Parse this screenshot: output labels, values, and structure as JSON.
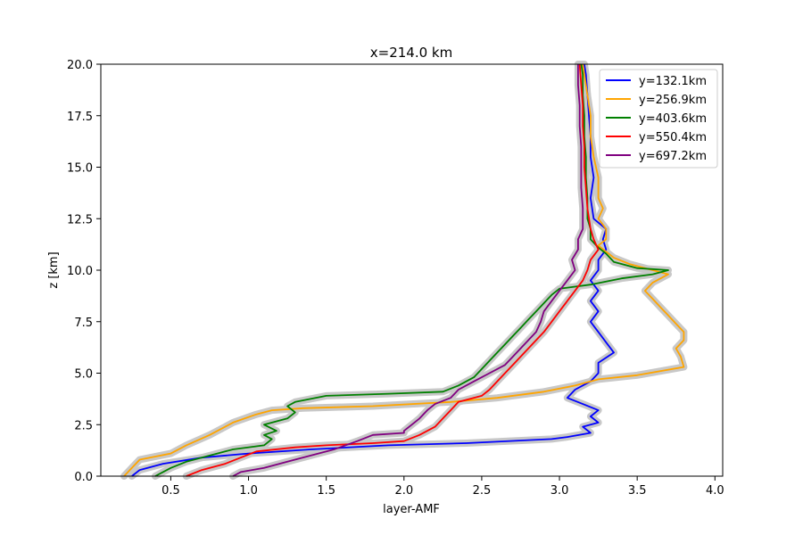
{
  "chart_data": {
    "type": "line",
    "title": "x=214.0 km",
    "xlabel": "layer-AMF",
    "ylabel": "z [km]",
    "xlim": [
      0.05,
      4.05
    ],
    "ylim": [
      0,
      20
    ],
    "xticks": [
      "0.5",
      "1.0",
      "1.5",
      "2.0",
      "2.5",
      "3.0",
      "3.5",
      "4.0"
    ],
    "yticks": [
      "0.0",
      "2.5",
      "5.0",
      "7.5",
      "10.0",
      "12.5",
      "15.0",
      "17.5",
      "20.0"
    ],
    "grid": false,
    "legend_position": "top-right",
    "band_color": "#c8c8c8",
    "series": [
      {
        "name": "y=132.1km",
        "color": "#0000ff",
        "points": [
          [
            0.25,
            0
          ],
          [
            0.3,
            0.3
          ],
          [
            0.45,
            0.6
          ],
          [
            0.7,
            0.9
          ],
          [
            1.0,
            1.1
          ],
          [
            1.4,
            1.3
          ],
          [
            1.9,
            1.5
          ],
          [
            2.4,
            1.6
          ],
          [
            2.95,
            1.8
          ],
          [
            3.05,
            1.9
          ],
          [
            3.2,
            2.1
          ],
          [
            3.15,
            2.4
          ],
          [
            3.25,
            2.6
          ],
          [
            3.2,
            2.9
          ],
          [
            3.25,
            3.2
          ],
          [
            3.15,
            3.5
          ],
          [
            3.05,
            3.8
          ],
          [
            3.1,
            4.2
          ],
          [
            3.2,
            4.6
          ],
          [
            3.25,
            5.0
          ],
          [
            3.25,
            5.5
          ],
          [
            3.35,
            6.0
          ],
          [
            3.3,
            6.5
          ],
          [
            3.25,
            7.0
          ],
          [
            3.2,
            7.5
          ],
          [
            3.25,
            8.0
          ],
          [
            3.2,
            8.5
          ],
          [
            3.25,
            9.0
          ],
          [
            3.2,
            9.5
          ],
          [
            3.25,
            10.0
          ],
          [
            3.25,
            10.5
          ],
          [
            3.3,
            11.0
          ],
          [
            3.28,
            11.5
          ],
          [
            3.3,
            12.0
          ],
          [
            3.22,
            12.5
          ],
          [
            3.2,
            13.5
          ],
          [
            3.22,
            14.5
          ],
          [
            3.2,
            15.5
          ],
          [
            3.2,
            16.5
          ],
          [
            3.19,
            17.5
          ],
          [
            3.18,
            18.5
          ],
          [
            3.17,
            19.5
          ],
          [
            3.16,
            20.0
          ]
        ]
      },
      {
        "name": "y=256.9km",
        "color": "#ffa500",
        "points": [
          [
            0.2,
            0
          ],
          [
            0.25,
            0.4
          ],
          [
            0.3,
            0.8
          ],
          [
            0.5,
            1.1
          ],
          [
            0.6,
            1.5
          ],
          [
            0.75,
            2.0
          ],
          [
            0.85,
            2.4
          ],
          [
            0.9,
            2.6
          ],
          [
            1.05,
            3.0
          ],
          [
            1.15,
            3.2
          ],
          [
            1.35,
            3.3
          ],
          [
            1.8,
            3.4
          ],
          [
            2.3,
            3.6
          ],
          [
            2.6,
            3.8
          ],
          [
            2.9,
            4.1
          ],
          [
            3.1,
            4.4
          ],
          [
            3.25,
            4.7
          ],
          [
            3.5,
            4.9
          ],
          [
            3.8,
            5.3
          ],
          [
            3.78,
            5.8
          ],
          [
            3.75,
            6.2
          ],
          [
            3.8,
            6.6
          ],
          [
            3.8,
            7.0
          ],
          [
            3.75,
            7.4
          ],
          [
            3.7,
            7.8
          ],
          [
            3.65,
            8.2
          ],
          [
            3.6,
            8.6
          ],
          [
            3.55,
            9.0
          ],
          [
            3.6,
            9.4
          ],
          [
            3.7,
            9.8
          ],
          [
            3.6,
            10.0
          ],
          [
            3.45,
            10.3
          ],
          [
            3.35,
            10.6
          ],
          [
            3.3,
            10.9
          ],
          [
            3.25,
            11.2
          ],
          [
            3.3,
            11.5
          ],
          [
            3.3,
            12.0
          ],
          [
            3.25,
            12.5
          ],
          [
            3.28,
            13.0
          ],
          [
            3.25,
            13.5
          ],
          [
            3.25,
            14.5
          ],
          [
            3.22,
            15.5
          ],
          [
            3.2,
            16.5
          ],
          [
            3.2,
            17.5
          ],
          [
            3.18,
            18.5
          ],
          [
            3.16,
            19.5
          ],
          [
            3.15,
            20.0
          ]
        ]
      },
      {
        "name": "y=403.6km",
        "color": "#008000",
        "points": [
          [
            0.4,
            0
          ],
          [
            0.5,
            0.4
          ],
          [
            0.6,
            0.7
          ],
          [
            0.75,
            1.0
          ],
          [
            0.9,
            1.3
          ],
          [
            1.1,
            1.5
          ],
          [
            1.15,
            1.8
          ],
          [
            1.1,
            2.0
          ],
          [
            1.18,
            2.2
          ],
          [
            1.1,
            2.5
          ],
          [
            1.25,
            2.8
          ],
          [
            1.3,
            3.1
          ],
          [
            1.25,
            3.4
          ],
          [
            1.3,
            3.6
          ],
          [
            1.5,
            3.9
          ],
          [
            1.9,
            4.0
          ],
          [
            2.25,
            4.1
          ],
          [
            2.35,
            4.4
          ],
          [
            2.45,
            4.8
          ],
          [
            2.5,
            5.2
          ],
          [
            2.55,
            5.6
          ],
          [
            2.6,
            6.0
          ],
          [
            2.65,
            6.4
          ],
          [
            2.7,
            6.8
          ],
          [
            2.75,
            7.2
          ],
          [
            2.8,
            7.6
          ],
          [
            2.85,
            8.0
          ],
          [
            2.9,
            8.4
          ],
          [
            2.95,
            8.8
          ],
          [
            3.0,
            9.1
          ],
          [
            3.2,
            9.3
          ],
          [
            3.4,
            9.6
          ],
          [
            3.6,
            9.8
          ],
          [
            3.7,
            10.0
          ],
          [
            3.5,
            10.1
          ],
          [
            3.35,
            10.4
          ],
          [
            3.3,
            10.8
          ],
          [
            3.25,
            11.1
          ],
          [
            3.2,
            11.5
          ],
          [
            3.2,
            12.0
          ],
          [
            3.18,
            12.5
          ],
          [
            3.18,
            13.5
          ],
          [
            3.17,
            14.5
          ],
          [
            3.17,
            15.5
          ],
          [
            3.16,
            16.5
          ],
          [
            3.16,
            17.5
          ],
          [
            3.15,
            18.5
          ],
          [
            3.15,
            19.5
          ],
          [
            3.14,
            20.0
          ]
        ]
      },
      {
        "name": "y=550.4km",
        "color": "#ff0000",
        "points": [
          [
            0.6,
            0
          ],
          [
            0.7,
            0.3
          ],
          [
            0.85,
            0.6
          ],
          [
            0.95,
            0.9
          ],
          [
            1.05,
            1.2
          ],
          [
            1.3,
            1.4
          ],
          [
            1.5,
            1.5
          ],
          [
            1.8,
            1.6
          ],
          [
            2.0,
            1.7
          ],
          [
            2.1,
            2.0
          ],
          [
            2.2,
            2.4
          ],
          [
            2.25,
            2.8
          ],
          [
            2.3,
            3.2
          ],
          [
            2.35,
            3.6
          ],
          [
            2.5,
            3.9
          ],
          [
            2.55,
            4.2
          ],
          [
            2.6,
            4.6
          ],
          [
            2.65,
            5.0
          ],
          [
            2.7,
            5.4
          ],
          [
            2.75,
            5.8
          ],
          [
            2.8,
            6.2
          ],
          [
            2.85,
            6.6
          ],
          [
            2.9,
            7.0
          ],
          [
            2.95,
            7.5
          ],
          [
            3.0,
            8.0
          ],
          [
            3.05,
            8.5
          ],
          [
            3.1,
            9.0
          ],
          [
            3.15,
            9.5
          ],
          [
            3.18,
            10.0
          ],
          [
            3.2,
            10.5
          ],
          [
            3.25,
            11.0
          ],
          [
            3.22,
            11.5
          ],
          [
            3.2,
            12.0
          ],
          [
            3.18,
            13.0
          ],
          [
            3.17,
            14.0
          ],
          [
            3.16,
            15.0
          ],
          [
            3.16,
            16.0
          ],
          [
            3.15,
            17.0
          ],
          [
            3.15,
            18.0
          ],
          [
            3.14,
            19.0
          ],
          [
            3.13,
            20.0
          ]
        ]
      },
      {
        "name": "y=697.2km",
        "color": "#800080",
        "points": [
          [
            0.9,
            0
          ],
          [
            0.95,
            0.2
          ],
          [
            1.1,
            0.4
          ],
          [
            1.25,
            0.7
          ],
          [
            1.4,
            1.0
          ],
          [
            1.55,
            1.3
          ],
          [
            1.7,
            1.7
          ],
          [
            1.8,
            2.0
          ],
          [
            2.0,
            2.1
          ],
          [
            2.0,
            2.2
          ],
          [
            2.05,
            2.5
          ],
          [
            2.1,
            2.8
          ],
          [
            2.15,
            3.2
          ],
          [
            2.2,
            3.5
          ],
          [
            2.3,
            3.8
          ],
          [
            2.35,
            4.2
          ],
          [
            2.45,
            4.6
          ],
          [
            2.55,
            5.0
          ],
          [
            2.65,
            5.4
          ],
          [
            2.7,
            5.8
          ],
          [
            2.75,
            6.2
          ],
          [
            2.8,
            6.6
          ],
          [
            2.85,
            7.0
          ],
          [
            2.88,
            7.5
          ],
          [
            2.9,
            8.0
          ],
          [
            2.95,
            8.5
          ],
          [
            3.0,
            9.0
          ],
          [
            3.05,
            9.5
          ],
          [
            3.1,
            10.0
          ],
          [
            3.08,
            10.5
          ],
          [
            3.12,
            11.0
          ],
          [
            3.12,
            11.5
          ],
          [
            3.15,
            12.0
          ],
          [
            3.15,
            13.0
          ],
          [
            3.14,
            14.0
          ],
          [
            3.14,
            15.0
          ],
          [
            3.14,
            16.0
          ],
          [
            3.13,
            17.0
          ],
          [
            3.13,
            18.0
          ],
          [
            3.12,
            19.0
          ],
          [
            3.12,
            20.0
          ]
        ]
      }
    ]
  }
}
